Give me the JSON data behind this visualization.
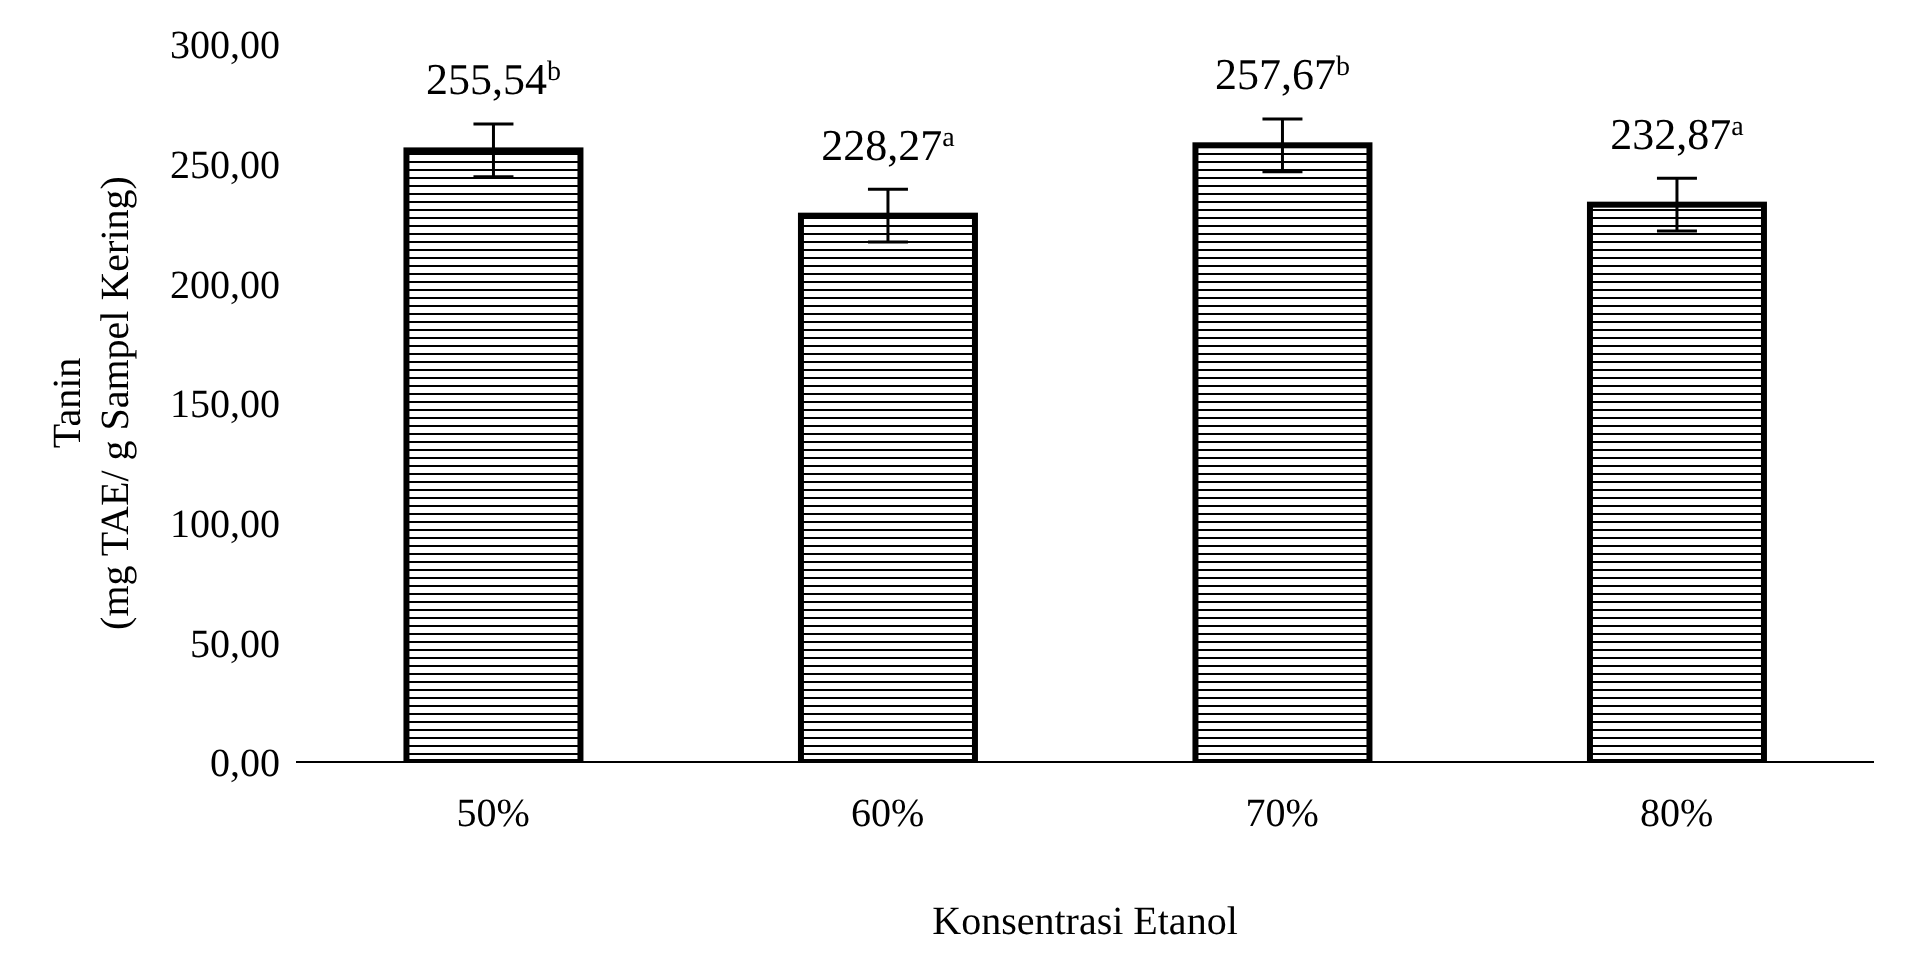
{
  "chart_data": {
    "type": "bar",
    "xlabel": "Konsentrasi Etanol",
    "ylabel": "Tanin\n(mg TAE/ g Sampel Kering)",
    "categories": [
      "50%",
      "60%",
      "70%",
      "80%"
    ],
    "values": [
      255.54,
      228.27,
      257.67,
      232.87
    ],
    "value_labels": [
      "255,54$^{b}$",
      "228,27$^{a}$",
      "257,67$^{b}$",
      "232,87$^{a}$"
    ],
    "errors": [
      11,
      11,
      11,
      11
    ],
    "color": "#000000",
    "ylim": [
      0,
      300
    ],
    "yticks": [
      {
        "value": 0,
        "label": "0,00"
      },
      {
        "value": 50,
        "label": "50,00"
      },
      {
        "value": 100,
        "label": "100,00"
      },
      {
        "value": 150,
        "label": "150,00"
      },
      {
        "value": 200,
        "label": "200,00"
      },
      {
        "value": 250,
        "label": "250,00"
      },
      {
        "value": 300,
        "label": "300,00"
      }
    ],
    "grid": false
  }
}
